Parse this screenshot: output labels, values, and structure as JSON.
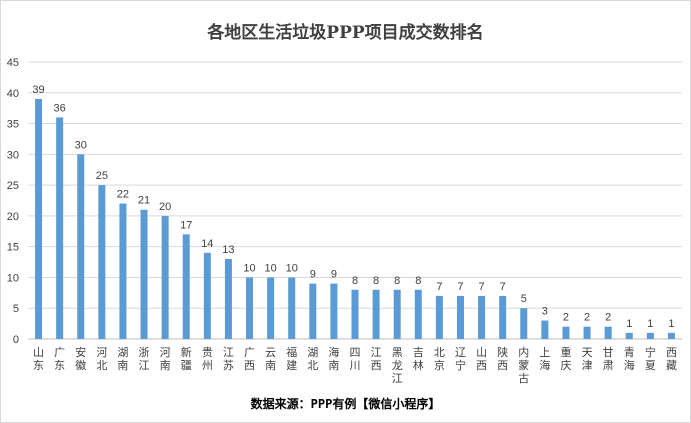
{
  "chart_data": {
    "type": "bar",
    "title": "各地区生活垃圾PPP项目成交数排名",
    "xlabel": "",
    "ylabel": "",
    "categories": [
      "山东",
      "广东",
      "安徽",
      "河北",
      "湖南",
      "浙江",
      "河南",
      "新疆",
      "贵州",
      "江苏",
      "广西",
      "云南",
      "福建",
      "湖北",
      "海南",
      "四川",
      "江西",
      "黑龙江",
      "吉林",
      "北京",
      "辽宁",
      "山西",
      "陕西",
      "内蒙古",
      "上海",
      "重庆",
      "天津",
      "甘肃",
      "青海",
      "宁夏",
      "西藏"
    ],
    "values": [
      39,
      36,
      30,
      25,
      22,
      21,
      20,
      17,
      14,
      13,
      10,
      10,
      10,
      9,
      9,
      8,
      8,
      8,
      8,
      7,
      7,
      7,
      7,
      5,
      3,
      2,
      2,
      2,
      1,
      1,
      1
    ],
    "ylim": [
      0,
      45
    ],
    "yticks": [
      0,
      5,
      10,
      15,
      20,
      25,
      30,
      35,
      40,
      45
    ],
    "grid": true,
    "legend": "none",
    "bar_color": "#5b9bd5",
    "grid_color": "#d9d9d9",
    "text_color": "#404040"
  },
  "source_note": "数据来源：PPP有例【微信小程序】"
}
